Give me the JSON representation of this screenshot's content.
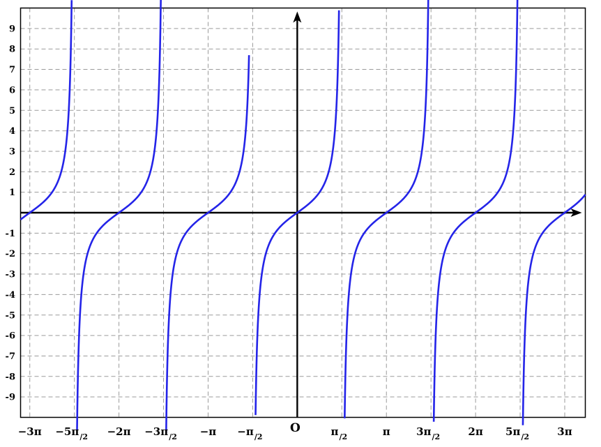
{
  "chart_data": {
    "type": "line",
    "function": "tan(x)",
    "xlim": [
      -9.75,
      10.15
    ],
    "ylim": [
      -10,
      10
    ],
    "grid": true,
    "origin_label": "O",
    "y_ticks": [
      {
        "value": 9,
        "label": "9"
      },
      {
        "value": 8,
        "label": "8"
      },
      {
        "value": 7,
        "label": "7"
      },
      {
        "value": 6,
        "label": "6"
      },
      {
        "value": 5,
        "label": "5"
      },
      {
        "value": 4,
        "label": "4"
      },
      {
        "value": 3,
        "label": "3"
      },
      {
        "value": 2,
        "label": "2"
      },
      {
        "value": 1,
        "label": "1"
      },
      {
        "value": -1,
        "label": "-1"
      },
      {
        "value": -2,
        "label": "-2"
      },
      {
        "value": -3,
        "label": "-3"
      },
      {
        "value": -4,
        "label": "-4"
      },
      {
        "value": -5,
        "label": "-5"
      },
      {
        "value": -6,
        "label": "-6"
      },
      {
        "value": -7,
        "label": "-7"
      },
      {
        "value": -8,
        "label": "-8"
      },
      {
        "value": -9,
        "label": "-9"
      }
    ],
    "x_ticks": [
      {
        "value": -9.4248,
        "label": "−3π",
        "sub": ""
      },
      {
        "value": -7.854,
        "label": "−5π",
        "sub": "2"
      },
      {
        "value": -6.2832,
        "label": "−2π",
        "sub": ""
      },
      {
        "value": -4.7124,
        "label": "−3π",
        "sub": "2"
      },
      {
        "value": -3.1416,
        "label": "−π",
        "sub": ""
      },
      {
        "value": -1.5708,
        "label": "−π",
        "sub": "2"
      },
      {
        "value": 1.5708,
        "label": "π",
        "sub": "2"
      },
      {
        "value": 3.1416,
        "label": "π",
        "sub": ""
      },
      {
        "value": 4.7124,
        "label": "3π",
        "sub": "2"
      },
      {
        "value": 6.2832,
        "label": "2π",
        "sub": ""
      },
      {
        "value": 7.854,
        "label": "5π",
        "sub": "2"
      },
      {
        "value": 9.4248,
        "label": "3π",
        "sub": ""
      }
    ],
    "series": [
      {
        "color": "#2424e8",
        "branches": [
          {
            "x": [
              -9.75,
              -9.4248,
              -9.0,
              -8.5,
              -8.2,
              -7.95
            ],
            "y": [
              -0.33,
              0,
              0.45,
              1.38,
              2.84,
              10
            ]
          },
          {
            "x": [
              -7.76,
              -7.0,
              -6.6,
              -6.2832,
              -5.9,
              -5.4,
              -5.0,
              -4.8
            ],
            "y": [
              -10,
              -0.87,
              -0.33,
              0,
              0.4,
              1.33,
              2.96,
              11.4
            ]
          },
          {
            "x": [
              -4.62,
              -4.3,
              -3.6,
              -3.1416,
              -2.6,
              -2.0,
              -1.7
            ],
            "y": [
              -10,
              -2.29,
              -0.49,
              0,
              0.6,
              2.19,
              7.7
            ]
          },
          {
            "x": [
              -1.47,
              -1.0,
              -0.5,
              0,
              0.5,
              1.0,
              1.47
            ],
            "y": [
              -10,
              -1.56,
              -0.55,
              0,
              0.55,
              1.56,
              10
            ]
          },
          {
            "x": [
              1.67,
              2.0,
              2.6,
              3.1416,
              3.6,
              4.3,
              4.62
            ],
            "y": [
              -10,
              -2.19,
              -0.6,
              0,
              0.49,
              2.29,
              10
            ]
          },
          {
            "x": [
              4.81,
              5.2,
              5.8,
              6.2832,
              6.8,
              7.5,
              7.76
            ],
            "y": [
              -10,
              -1.89,
              -0.53,
              0,
              0.57,
              2.71,
              10
            ]
          },
          {
            "x": [
              7.95,
              8.4,
              9.0,
              9.4248,
              9.8,
              10.15
            ],
            "y": [
              -10,
              -1.71,
              -0.45,
              0,
              0.39,
              0.82
            ]
          }
        ]
      }
    ]
  }
}
